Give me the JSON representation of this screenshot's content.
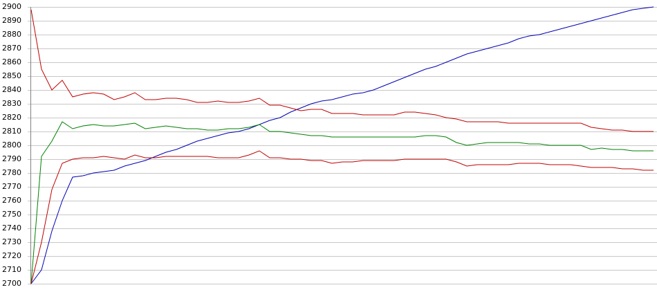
{
  "chart_data": {
    "type": "line",
    "series": [
      {
        "color": "#0000b4",
        "values": [
          2700,
          2710,
          2738,
          2760,
          2777,
          2778,
          2780,
          2781,
          2782,
          2785,
          2787,
          2789,
          2792,
          2795,
          2797,
          2800,
          2803,
          2805,
          2807,
          2809,
          2810,
          2812,
          2815,
          2818,
          2820,
          2824,
          2827,
          2830,
          2832,
          2833,
          2835,
          2837,
          2838,
          2840,
          2843,
          2846,
          2849,
          2852,
          2855,
          2857,
          2860,
          2863,
          2866,
          2868,
          2870,
          2872,
          2874,
          2877,
          2879,
          2880,
          2882,
          2884,
          2886,
          2888,
          2890,
          2892,
          2894,
          2896,
          2898,
          2899,
          2900
        ]
      },
      {
        "color": "#c00000",
        "values": [
          2898,
          2855,
          2840,
          2847,
          2835,
          2837,
          2838,
          2837,
          2833,
          2835,
          2838,
          2833,
          2833,
          2834,
          2834,
          2833,
          2831,
          2831,
          2832,
          2831,
          2831,
          2832,
          2834,
          2829,
          2829,
          2827,
          2825,
          2826,
          2826,
          2823,
          2823,
          2823,
          2822,
          2822,
          2822,
          2822,
          2824,
          2824,
          2823,
          2822,
          2820,
          2819,
          2817,
          2817,
          2817,
          2817,
          2816,
          2816,
          2816,
          2816,
          2816,
          2816,
          2816,
          2816,
          2813,
          2812,
          2811,
          2811,
          2810,
          2810,
          2810
        ]
      },
      {
        "color": "#008000",
        "values": [
          2700,
          2792,
          2803,
          2817,
          2812,
          2814,
          2815,
          2814,
          2814,
          2815,
          2816,
          2812,
          2813,
          2814,
          2813,
          2812,
          2812,
          2811,
          2811,
          2812,
          2812,
          2813,
          2815,
          2810,
          2810,
          2809,
          2808,
          2807,
          2807,
          2806,
          2806,
          2806,
          2806,
          2806,
          2806,
          2806,
          2806,
          2806,
          2807,
          2807,
          2806,
          2802,
          2800,
          2801,
          2802,
          2802,
          2802,
          2802,
          2801,
          2801,
          2800,
          2800,
          2800,
          2800,
          2797,
          2798,
          2797,
          2797,
          2796,
          2796,
          2796
        ]
      },
      {
        "color": "#c00000",
        "values": [
          2700,
          2730,
          2768,
          2787,
          2790,
          2791,
          2791,
          2792,
          2791,
          2790,
          2793,
          2791,
          2791,
          2792,
          2792,
          2792,
          2792,
          2792,
          2791,
          2791,
          2791,
          2793,
          2796,
          2791,
          2791,
          2790,
          2790,
          2789,
          2789,
          2787,
          2788,
          2788,
          2789,
          2789,
          2789,
          2789,
          2790,
          2790,
          2790,
          2790,
          2790,
          2788,
          2785,
          2786,
          2786,
          2786,
          2786,
          2787,
          2787,
          2787,
          2786,
          2786,
          2786,
          2785,
          2784,
          2784,
          2784,
          2783,
          2783,
          2782,
          2782
        ]
      }
    ],
    "ylim": [
      2700,
      2900
    ],
    "yticks": [
      2700,
      2710,
      2720,
      2730,
      2740,
      2750,
      2760,
      2770,
      2780,
      2790,
      2800,
      2810,
      2820,
      2830,
      2840,
      2850,
      2860,
      2870,
      2880,
      2890,
      2900
    ],
    "grid": true
  }
}
